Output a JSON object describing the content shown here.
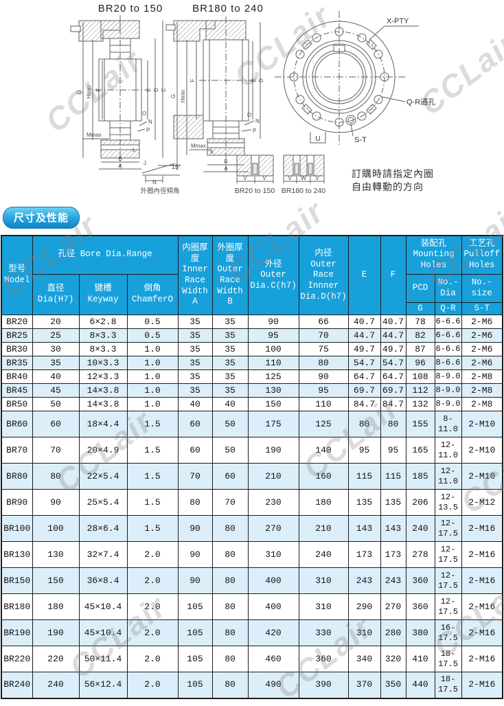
{
  "watermark": {
    "text": "CCLair"
  },
  "drawings": {
    "left_title": "BR20 to 150",
    "middle_title": "BR180 to 240",
    "left_dims": {
      "g": "G",
      "hmin": "Hmin",
      "f": "F",
      "e": "E",
      "d": "D",
      "c": "C",
      "o": "O",
      "n": "N",
      "p": "P",
      "mmax": "Mmax",
      "l": "L",
      "b": "B",
      "a": "A",
      "j": "J"
    },
    "middle_dims": {
      "g": "G",
      "hmin": "Hmin",
      "f": "F",
      "e": "E",
      "d": "D",
      "o": "O",
      "n": "N",
      "p": "P",
      "mmax": "Mmax",
      "k": "K",
      "b": "B",
      "a": "A",
      "j": "J"
    },
    "flange": {
      "x_pty": "X-PTY",
      "qr_hole": "Q-R通孔",
      "s_t": "S-T",
      "u": "U"
    },
    "taper": {
      "angle": "15°",
      "dim": "N",
      "caption": "外圈內徑傾角"
    },
    "section_a": {
      "caption": "BR20 to 150",
      "dims": [
        "V",
        "V"
      ]
    },
    "section_b": {
      "caption": "BR180 to 240",
      "dims": [
        "V",
        "W",
        "V"
      ]
    },
    "order_note_line1": "訂購時請指定內圈",
    "order_note_line2": "自由轉動的方向"
  },
  "section_label": "尺寸及性能",
  "table": {
    "headers": {
      "model": "型号\nModel",
      "bore_group": "孔径 Bore Dia.Range",
      "dia": "直径\nDia(H7)",
      "keyway": "键槽\nKeyway",
      "chamfer": "倒角\nChamferO",
      "inner_race": "内圈厚\n度\nInner\nRace\nWidth\nA",
      "outer_race": "外圈厚\n度\nOuter\nRace\nWidth\nB",
      "outer_dia": "外径\nOuter\nDia.C(h7)",
      "inner_dia": "内径\nOuter\nRace\nInnner\nDia.D(h7)",
      "e": "E",
      "f": "F",
      "mounting_group": "装配孔\nMounting\nHoles",
      "pulloff_group": "工艺孔\nPulloff\nHoles",
      "pcd": "PCD",
      "no_dia": "No.-\nDia",
      "no_size": "No.-\nsize",
      "g": "G",
      "qr": "Q-R",
      "st": "S-T"
    },
    "rows": [
      [
        "BR20",
        "20",
        "6×2.8",
        "0.5",
        "35",
        "35",
        "90",
        "66",
        "40.7",
        "40.7",
        "78",
        "6-6.6",
        "2-M6"
      ],
      [
        "BR25",
        "25",
        "8×3.3",
        "0.5",
        "35",
        "35",
        "95",
        "70",
        "44.7",
        "44.7",
        "82",
        "6-6.6",
        "2-M6"
      ],
      [
        "BR30",
        "30",
        "8×3.3",
        "1.0",
        "35",
        "35",
        "100",
        "75",
        "49.7",
        "49.7",
        "87",
        "6-6.6",
        "2-M6"
      ],
      [
        "BR35",
        "35",
        "10×3.3",
        "1.0",
        "35",
        "35",
        "110",
        "80",
        "54.7",
        "54.7",
        "96",
        "8-6.6",
        "2-M6"
      ],
      [
        "BR40",
        "40",
        "12×3.3",
        "1.0",
        "35",
        "35",
        "125",
        "90",
        "64.7",
        "64.7",
        "108",
        "8-9.0",
        "2-M8"
      ],
      [
        "BR45",
        "45",
        "14×3.8",
        "1.0",
        "35",
        "35",
        "130",
        "95",
        "69.7",
        "69.7",
        "112",
        "8-9.0",
        "2-M8"
      ],
      [
        "BR50",
        "50",
        "14×3.8",
        "1.0",
        "40",
        "40",
        "150",
        "110",
        "84.7",
        "84.7",
        "132",
        "8-9.0",
        "2-M8"
      ],
      [
        "BR60",
        "60",
        "18×4.4",
        "1.5",
        "60",
        "50",
        "175",
        "125",
        "80",
        "80",
        "155",
        "8-11.0",
        "2-M10"
      ],
      [
        "BR70",
        "70",
        "20×4.9",
        "1.5",
        "60",
        "50",
        "190",
        "140",
        "95",
        "95",
        "165",
        "12-11.0",
        "2-M10"
      ],
      [
        "BR80",
        "80",
        "22×5.4",
        "1.5",
        "70",
        "60",
        "210",
        "160",
        "115",
        "115",
        "185",
        "12-11.0",
        "2-M10"
      ],
      [
        "BR90",
        "90",
        "25×5.4",
        "1.5",
        "80",
        "70",
        "230",
        "180",
        "135",
        "135",
        "206",
        "12-13.5",
        "2-M12"
      ],
      [
        "BR100",
        "100",
        "28×6.4",
        "1.5",
        "90",
        "80",
        "270",
        "210",
        "143",
        "143",
        "240",
        "12-17.5",
        "2-M16"
      ],
      [
        "BR130",
        "130",
        "32×7.4",
        "2.0",
        "90",
        "80",
        "310",
        "240",
        "173",
        "173",
        "278",
        "12-17.5",
        "2-M16"
      ],
      [
        "BR150",
        "150",
        "36×8.4",
        "2.0",
        "90",
        "80",
        "400",
        "310",
        "243",
        "243",
        "360",
        "12-17.5",
        "2-M16"
      ],
      [
        "BR180",
        "180",
        "45×10.4",
        "2.0",
        "105",
        "80",
        "400",
        "310",
        "290",
        "270",
        "360",
        "12-17.5",
        "2-M16"
      ],
      [
        "BR190",
        "190",
        "45×10.4",
        "2.0",
        "105",
        "80",
        "420",
        "330",
        "310",
        "280",
        "380",
        "16-17.5",
        "2-M16"
      ],
      [
        "BR220",
        "220",
        "50×11.4",
        "2.0",
        "105",
        "80",
        "460",
        "360",
        "340",
        "320",
        "410",
        "18-17.5",
        "2-M16"
      ],
      [
        "BR240",
        "240",
        "56×12.4",
        "2.0",
        "105",
        "80",
        "490",
        "390",
        "370",
        "350",
        "440",
        "18-17.5",
        "2-M16"
      ]
    ]
  }
}
